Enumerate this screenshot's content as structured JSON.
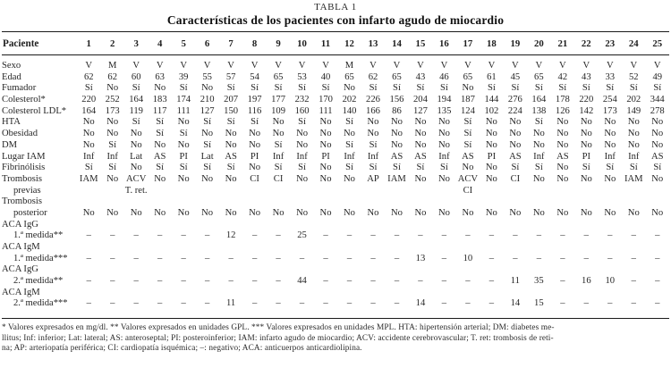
{
  "table": {
    "caption": "TABLA 1",
    "title": "Características de los pacientes con infarto agudo de miocardio",
    "header_label": "Paciente",
    "patient_numbers": [
      "1",
      "2",
      "3",
      "4",
      "5",
      "6",
      "7",
      "8",
      "9",
      "10",
      "11",
      "12",
      "13",
      "14",
      "15",
      "16",
      "17",
      "18",
      "19",
      "20",
      "21",
      "22",
      "23",
      "24",
      "25"
    ],
    "rows": [
      {
        "label": "Sexo",
        "indent": false,
        "values": [
          "V",
          "M",
          "V",
          "V",
          "V",
          "V",
          "V",
          "V",
          "V",
          "V",
          "V",
          "M",
          "V",
          "V",
          "V",
          "V",
          "V",
          "V",
          "V",
          "V",
          "V",
          "V",
          "V",
          "V",
          "V"
        ]
      },
      {
        "label": "Edad",
        "indent": false,
        "values": [
          "62",
          "62",
          "60",
          "63",
          "39",
          "55",
          "57",
          "54",
          "65",
          "53",
          "40",
          "65",
          "62",
          "65",
          "43",
          "46",
          "65",
          "61",
          "45",
          "65",
          "42",
          "43",
          "33",
          "52",
          "49"
        ]
      },
      {
        "label": "Fumador",
        "indent": false,
        "values": [
          "Sí",
          "No",
          "Sí",
          "No",
          "Sí",
          "No",
          "Sí",
          "Sí",
          "Sí",
          "Sí",
          "Sí",
          "No",
          "Sí",
          "Sí",
          "Sí",
          "Sí",
          "No",
          "Sí",
          "Sí",
          "Sí",
          "Sí",
          "Sí",
          "Sí",
          "Sí",
          "Sí"
        ]
      },
      {
        "label": "Colesterol*",
        "indent": false,
        "values": [
          "220",
          "252",
          "164",
          "183",
          "174",
          "210",
          "207",
          "197",
          "177",
          "232",
          "170",
          "202",
          "226",
          "156",
          "204",
          "194",
          "187",
          "144",
          "276",
          "164",
          "178",
          "220",
          "254",
          "202",
          "344"
        ]
      },
      {
        "label": "Colesterol LDL*",
        "indent": false,
        "values": [
          "164",
          "173",
          "119",
          "117",
          "111",
          "127",
          "150",
          "116",
          "109",
          "160",
          "111",
          "140",
          "166",
          "86",
          "127",
          "135",
          "124",
          "102",
          "224",
          "138",
          "126",
          "142",
          "173",
          "149",
          "278"
        ]
      },
      {
        "label": "HTA",
        "indent": false,
        "values": [
          "No",
          "No",
          "Sí",
          "Sí",
          "No",
          "Sí",
          "Sí",
          "Sí",
          "No",
          "Sí",
          "No",
          "Sí",
          "No",
          "No",
          "No",
          "No",
          "Sí",
          "No",
          "No",
          "Sí",
          "No",
          "No",
          "No",
          "No",
          "No"
        ]
      },
      {
        "label": "Obesidad",
        "indent": false,
        "values": [
          "No",
          "No",
          "No",
          "Sí",
          "Sí",
          "No",
          "No",
          "No",
          "No",
          "No",
          "No",
          "No",
          "No",
          "No",
          "No",
          "No",
          "Sí",
          "No",
          "No",
          "No",
          "No",
          "No",
          "No",
          "No",
          "No"
        ]
      },
      {
        "label": "DM",
        "indent": false,
        "values": [
          "No",
          "Sí",
          "No",
          "No",
          "No",
          "Sí",
          "No",
          "No",
          "Sí",
          "No",
          "No",
          "Sí",
          "Sí",
          "No",
          "No",
          "No",
          "Sí",
          "No",
          "No",
          "No",
          "No",
          "No",
          "No",
          "No",
          "No"
        ]
      },
      {
        "label": "Lugar IAM",
        "indent": false,
        "values": [
          "Inf",
          "Inf",
          "Lat",
          "AS",
          "PI",
          "Lat",
          "AS",
          "PI",
          "Inf",
          "Inf",
          "PI",
          "Inf",
          "Inf",
          "AS",
          "AS",
          "Inf",
          "AS",
          "PI",
          "AS",
          "Inf",
          "AS",
          "PI",
          "Inf",
          "Inf",
          "AS"
        ]
      },
      {
        "label": "Fibrinólisis",
        "indent": false,
        "values": [
          "Sí",
          "Sí",
          "No",
          "Sí",
          "Sí",
          "Sí",
          "Sí",
          "No",
          "Sí",
          "Sí",
          "No",
          "Sí",
          "Sí",
          "Sí",
          "Sí",
          "Sí",
          "No",
          "No",
          "Sí",
          "Sí",
          "No",
          "Sí",
          "Sí",
          "Sí",
          "Sí"
        ]
      },
      {
        "label": "Trombosis",
        "indent": false,
        "values": [
          "IAM",
          "No",
          "ACV",
          "No",
          "No",
          "No",
          "No",
          "CI",
          "CI",
          "No",
          "No",
          "No",
          "AP",
          "IAM",
          "No",
          "No",
          "ACV",
          "No",
          "CI",
          "No",
          "No",
          "No",
          "No",
          "IAM",
          "No"
        ]
      },
      {
        "label": "previas",
        "indent": true,
        "values": [
          "",
          "",
          "T. ret.",
          "",
          "",
          "",
          "",
          "",
          "",
          "",
          "",
          "",
          "",
          "",
          "",
          "",
          "CI",
          "",
          "",
          "",
          "",
          "",
          "",
          "",
          ""
        ]
      },
      {
        "label": "Trombosis",
        "indent": false,
        "values": [
          "",
          "",
          "",
          "",
          "",
          "",
          "",
          "",
          "",
          "",
          "",
          "",
          "",
          "",
          "",
          "",
          "",
          "",
          "",
          "",
          "",
          "",
          "",
          "",
          ""
        ]
      },
      {
        "label": "posterior",
        "indent": true,
        "values": [
          "No",
          "No",
          "No",
          "No",
          "No",
          "No",
          "No",
          "No",
          "No",
          "No",
          "No",
          "No",
          "No",
          "No",
          "No",
          "No",
          "No",
          "No",
          "No",
          "No",
          "No",
          "No",
          "No",
          "No",
          "No"
        ]
      },
      {
        "label": "ACA IgG",
        "indent": false,
        "values": [
          "",
          "",
          "",
          "",
          "",
          "",
          "",
          "",
          "",
          "",
          "",
          "",
          "",
          "",
          "",
          "",
          "",
          "",
          "",
          "",
          "",
          "",
          "",
          "",
          ""
        ]
      },
      {
        "label": "1.ª medida**",
        "indent": true,
        "values": [
          "–",
          "–",
          "–",
          "–",
          "–",
          "–",
          "12",
          "–",
          "–",
          "25",
          "–",
          "–",
          "–",
          "–",
          "–",
          "–",
          "–",
          "–",
          "–",
          "–",
          "–",
          "–",
          "–",
          "–",
          "–"
        ]
      },
      {
        "label": "ACA IgM",
        "indent": false,
        "values": [
          "",
          "",
          "",
          "",
          "",
          "",
          "",
          "",
          "",
          "",
          "",
          "",
          "",
          "",
          "",
          "",
          "",
          "",
          "",
          "",
          "",
          "",
          "",
          "",
          ""
        ]
      },
      {
        "label": "1.ª medida***",
        "indent": true,
        "values": [
          "–",
          "–",
          "–",
          "–",
          "–",
          "–",
          "–",
          "–",
          "–",
          "–",
          "–",
          "–",
          "–",
          "–",
          "13",
          "–",
          "10",
          "–",
          "–",
          "–",
          "–",
          "–",
          "–",
          "–",
          "–"
        ]
      },
      {
        "label": "ACA IgG",
        "indent": false,
        "values": [
          "",
          "",
          "",
          "",
          "",
          "",
          "",
          "",
          "",
          "",
          "",
          "",
          "",
          "",
          "",
          "",
          "",
          "",
          "",
          "",
          "",
          "",
          "",
          "",
          ""
        ]
      },
      {
        "label": "2.ª medida**",
        "indent": true,
        "values": [
          "–",
          "–",
          "–",
          "–",
          "–",
          "–",
          "–",
          "–",
          "–",
          "44",
          "–",
          "–",
          "–",
          "–",
          "–",
          "–",
          "–",
          "–",
          "11",
          "35",
          "–",
          "16",
          "10",
          "–",
          "–"
        ]
      },
      {
        "label": "ACA IgM",
        "indent": false,
        "values": [
          "",
          "",
          "",
          "",
          "",
          "",
          "",
          "",
          "",
          "",
          "",
          "",
          "",
          "",
          "",
          "",
          "",
          "",
          "",
          "",
          "",
          "",
          "",
          "",
          ""
        ]
      },
      {
        "label": "2.ª medida***",
        "indent": true,
        "values": [
          "–",
          "–",
          "–",
          "–",
          "–",
          "–",
          "11",
          "–",
          "–",
          "–",
          "–",
          "–",
          "–",
          "–",
          "14",
          "–",
          "–",
          "–",
          "14",
          "15",
          "–",
          "–",
          "–",
          "–",
          "–"
        ]
      }
    ],
    "footnote_lines": [
      "* Valores expresados en mg/dl. ** Valores expresados en unidades GPL. *** Valores expresados en unidades MPL. HTA: hipertensión arterial; DM: diabetes me-",
      "llitus; Inf: inferior; Lat: lateral; AS: anteroseptal; PI: posteroinferior; IAM: infarto agudo de miocardio; ACV: accidente cerebrovascular; T. ret: trombosis de reti-",
      "na; AP: arteriopatía periférica; CI: cardiopatía isquémica; –: negativo; ACA: anticuerpos anticardiolipina."
    ]
  }
}
